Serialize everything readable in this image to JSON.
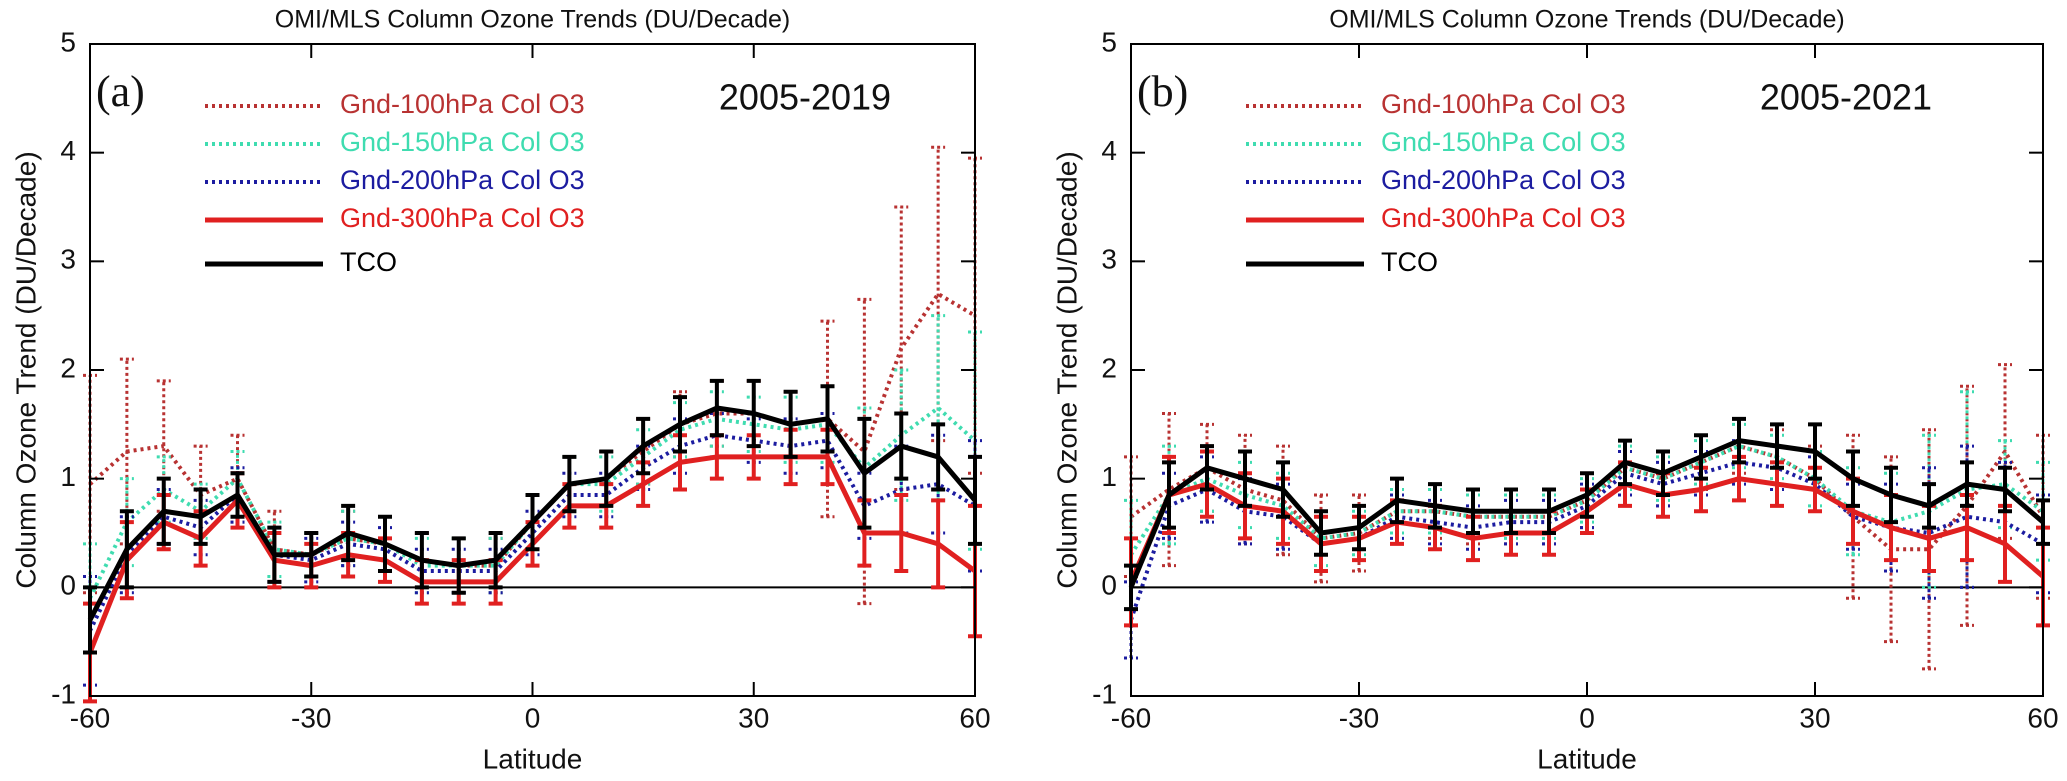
{
  "chart_data": [
    {
      "type": "line",
      "title": "OMI/MLS Column Ozone Trends (DU/Decade)",
      "panel_label": "(a)",
      "period": "2005-2019",
      "xlabel": "Latitude",
      "ylabel": "Column Ozone Trend (DU/Decade)",
      "x": [
        -60,
        -55,
        -50,
        -45,
        -40,
        -35,
        -30,
        -25,
        -20,
        -15,
        -10,
        -5,
        0,
        5,
        10,
        15,
        20,
        25,
        30,
        35,
        40,
        45,
        50,
        55,
        60
      ],
      "xlim": [
        -60,
        60
      ],
      "ylim": [
        -1,
        5
      ],
      "xticks": [
        -60,
        -30,
        0,
        30,
        60
      ],
      "yticks": [
        -1,
        0,
        1,
        2,
        3,
        4,
        5
      ],
      "legend": "upper left",
      "zero_line": true,
      "series": [
        {
          "name": "Gnd-100hPa Col O3",
          "color": "#b83232",
          "style": "dotted",
          "values": [
            0.95,
            1.25,
            1.3,
            0.85,
            1.0,
            0.35,
            0.3,
            0.45,
            0.4,
            0.25,
            0.2,
            0.2,
            0.6,
            0.95,
            1.0,
            1.25,
            1.5,
            1.6,
            1.6,
            1.5,
            1.55,
            1.25,
            2.2,
            2.7,
            2.5
          ],
          "errors": [
            1.0,
            0.85,
            0.6,
            0.45,
            0.4,
            0.35,
            0.2,
            0.25,
            0.25,
            0.25,
            0.25,
            0.25,
            0.25,
            0.25,
            0.25,
            0.3,
            0.3,
            0.3,
            0.3,
            0.3,
            0.9,
            1.4,
            1.3,
            1.35,
            1.45
          ]
        },
        {
          "name": "Gnd-150hPa Col O3",
          "color": "#3fdcb0",
          "style": "dotted",
          "values": [
            -0.1,
            0.6,
            0.9,
            0.7,
            1.0,
            0.35,
            0.3,
            0.45,
            0.4,
            0.2,
            0.2,
            0.2,
            0.6,
            0.95,
            0.95,
            1.2,
            1.45,
            1.55,
            1.5,
            1.45,
            1.5,
            1.1,
            1.4,
            1.65,
            1.35
          ],
          "errors": [
            0.5,
            0.4,
            0.3,
            0.25,
            0.25,
            0.25,
            0.2,
            0.25,
            0.25,
            0.25,
            0.25,
            0.25,
            0.25,
            0.25,
            0.25,
            0.25,
            0.25,
            0.25,
            0.25,
            0.3,
            0.35,
            0.55,
            0.6,
            0.85,
            1.0
          ]
        },
        {
          "name": "Gnd-200hPa Col O3",
          "color": "#1c1ca0",
          "style": "dotted",
          "values": [
            -0.4,
            0.3,
            0.65,
            0.55,
            0.85,
            0.3,
            0.25,
            0.4,
            0.35,
            0.15,
            0.15,
            0.15,
            0.5,
            0.85,
            0.85,
            1.1,
            1.3,
            1.4,
            1.35,
            1.3,
            1.35,
            0.75,
            0.9,
            0.95,
            0.75
          ],
          "errors": [
            0.5,
            0.35,
            0.25,
            0.25,
            0.25,
            0.25,
            0.2,
            0.2,
            0.2,
            0.2,
            0.2,
            0.2,
            0.2,
            0.2,
            0.2,
            0.2,
            0.25,
            0.2,
            0.2,
            0.25,
            0.25,
            0.3,
            0.4,
            0.45,
            0.6
          ]
        },
        {
          "name": "Gnd-300hPa Col O3",
          "color": "#e02020",
          "style": "solid",
          "values": [
            -0.6,
            0.25,
            0.6,
            0.45,
            0.8,
            0.25,
            0.2,
            0.3,
            0.25,
            0.05,
            0.05,
            0.05,
            0.4,
            0.75,
            0.75,
            0.95,
            1.15,
            1.2,
            1.2,
            1.2,
            1.2,
            0.5,
            0.5,
            0.4,
            0.15
          ],
          "errors": [
            0.45,
            0.35,
            0.25,
            0.25,
            0.25,
            0.25,
            0.2,
            0.2,
            0.2,
            0.2,
            0.2,
            0.2,
            0.2,
            0.2,
            0.2,
            0.2,
            0.25,
            0.2,
            0.2,
            0.25,
            0.25,
            0.3,
            0.35,
            0.4,
            0.6
          ]
        },
        {
          "name": "TCO",
          "color": "#000000",
          "style": "solid",
          "values": [
            -0.3,
            0.35,
            0.7,
            0.65,
            0.85,
            0.3,
            0.3,
            0.5,
            0.4,
            0.25,
            0.2,
            0.25,
            0.6,
            0.95,
            1.0,
            1.3,
            1.5,
            1.65,
            1.6,
            1.5,
            1.55,
            1.05,
            1.3,
            1.2,
            0.8
          ],
          "errors": [
            0.3,
            0.35,
            0.3,
            0.25,
            0.2,
            0.25,
            0.2,
            0.25,
            0.25,
            0.25,
            0.25,
            0.25,
            0.25,
            0.25,
            0.25,
            0.25,
            0.25,
            0.25,
            0.3,
            0.3,
            0.3,
            0.5,
            0.3,
            0.3,
            0.4
          ]
        }
      ]
    },
    {
      "type": "line",
      "title": "OMI/MLS Column Ozone Trends (DU/Decade)",
      "panel_label": "(b)",
      "period": "2005-2021",
      "xlabel": "Latitude",
      "ylabel": "Column Ozone Trend (DU/Decade)",
      "x": [
        -60,
        -55,
        -50,
        -45,
        -40,
        -35,
        -30,
        -25,
        -20,
        -15,
        -10,
        -5,
        0,
        5,
        10,
        15,
        20,
        25,
        30,
        35,
        40,
        45,
        50,
        55,
        60
      ],
      "xlim": [
        -60,
        60
      ],
      "ylim": [
        -1,
        5
      ],
      "xticks": [
        -60,
        -30,
        0,
        30,
        60
      ],
      "yticks": [
        -1,
        0,
        1,
        2,
        3,
        4,
        5
      ],
      "legend": "upper left",
      "zero_line": true,
      "series": [
        {
          "name": "Gnd-100hPa Col O3",
          "color": "#b83232",
          "style": "dotted",
          "values": [
            0.65,
            0.9,
            1.1,
            0.9,
            0.8,
            0.45,
            0.5,
            0.7,
            0.7,
            0.65,
            0.65,
            0.65,
            0.8,
            1.1,
            1.0,
            1.15,
            1.3,
            1.2,
            1.0,
            0.65,
            0.35,
            0.35,
            0.75,
            1.25,
            0.65
          ],
          "errors": [
            0.55,
            0.7,
            0.4,
            0.5,
            0.5,
            0.4,
            0.35,
            0.3,
            0.25,
            0.25,
            0.25,
            0.25,
            0.25,
            0.25,
            0.25,
            0.25,
            0.25,
            0.25,
            0.3,
            0.75,
            0.85,
            1.1,
            1.1,
            0.8,
            0.75
          ]
        },
        {
          "name": "Gnd-150hPa Col O3",
          "color": "#3fdcb0",
          "style": "dotted",
          "values": [
            0.3,
            0.85,
            1.0,
            0.85,
            0.75,
            0.45,
            0.5,
            0.7,
            0.7,
            0.65,
            0.65,
            0.65,
            0.8,
            1.1,
            1.0,
            1.15,
            1.3,
            1.2,
            1.0,
            0.7,
            0.6,
            0.7,
            0.9,
            0.95,
            0.7
          ],
          "errors": [
            0.5,
            0.45,
            0.3,
            0.3,
            0.3,
            0.25,
            0.2,
            0.2,
            0.2,
            0.2,
            0.2,
            0.2,
            0.2,
            0.2,
            0.2,
            0.2,
            0.2,
            0.2,
            0.25,
            0.4,
            0.45,
            0.7,
            0.9,
            0.4,
            0.45
          ]
        },
        {
          "name": "Gnd-200hPa Col O3",
          "color": "#1c1ca0",
          "style": "dotted",
          "values": [
            -0.3,
            0.75,
            0.9,
            0.7,
            0.65,
            0.4,
            0.45,
            0.65,
            0.6,
            0.55,
            0.6,
            0.6,
            0.75,
            1.05,
            0.95,
            1.05,
            1.15,
            1.1,
            0.95,
            0.65,
            0.55,
            0.5,
            0.65,
            0.6,
            0.4
          ],
          "errors": [
            0.35,
            0.3,
            0.3,
            0.3,
            0.3,
            0.25,
            0.2,
            0.2,
            0.2,
            0.2,
            0.2,
            0.2,
            0.2,
            0.2,
            0.2,
            0.2,
            0.2,
            0.2,
            0.25,
            0.3,
            0.4,
            0.6,
            0.65,
            0.55,
            0.45
          ]
        },
        {
          "name": "Gnd-300hPa Col O3",
          "color": "#e02020",
          "style": "solid",
          "values": [
            0.05,
            0.85,
            0.95,
            0.75,
            0.7,
            0.4,
            0.45,
            0.6,
            0.55,
            0.45,
            0.5,
            0.5,
            0.7,
            0.95,
            0.85,
            0.9,
            1.0,
            0.95,
            0.9,
            0.7,
            0.55,
            0.45,
            0.55,
            0.4,
            0.1
          ],
          "errors": [
            0.4,
            0.35,
            0.3,
            0.3,
            0.3,
            0.25,
            0.2,
            0.2,
            0.2,
            0.2,
            0.2,
            0.2,
            0.2,
            0.2,
            0.2,
            0.2,
            0.2,
            0.2,
            0.2,
            0.3,
            0.3,
            0.3,
            0.3,
            0.35,
            0.45
          ]
        },
        {
          "name": "TCO",
          "color": "#000000",
          "style": "solid",
          "values": [
            0.0,
            0.85,
            1.1,
            1.0,
            0.9,
            0.5,
            0.55,
            0.8,
            0.75,
            0.7,
            0.7,
            0.7,
            0.85,
            1.15,
            1.05,
            1.2,
            1.35,
            1.3,
            1.25,
            1.0,
            0.85,
            0.75,
            0.95,
            0.9,
            0.6
          ],
          "errors": [
            0.2,
            0.3,
            0.2,
            0.25,
            0.25,
            0.2,
            0.2,
            0.2,
            0.2,
            0.2,
            0.2,
            0.2,
            0.2,
            0.2,
            0.2,
            0.2,
            0.2,
            0.2,
            0.25,
            0.25,
            0.25,
            0.2,
            0.2,
            0.2,
            0.2
          ]
        }
      ]
    }
  ]
}
